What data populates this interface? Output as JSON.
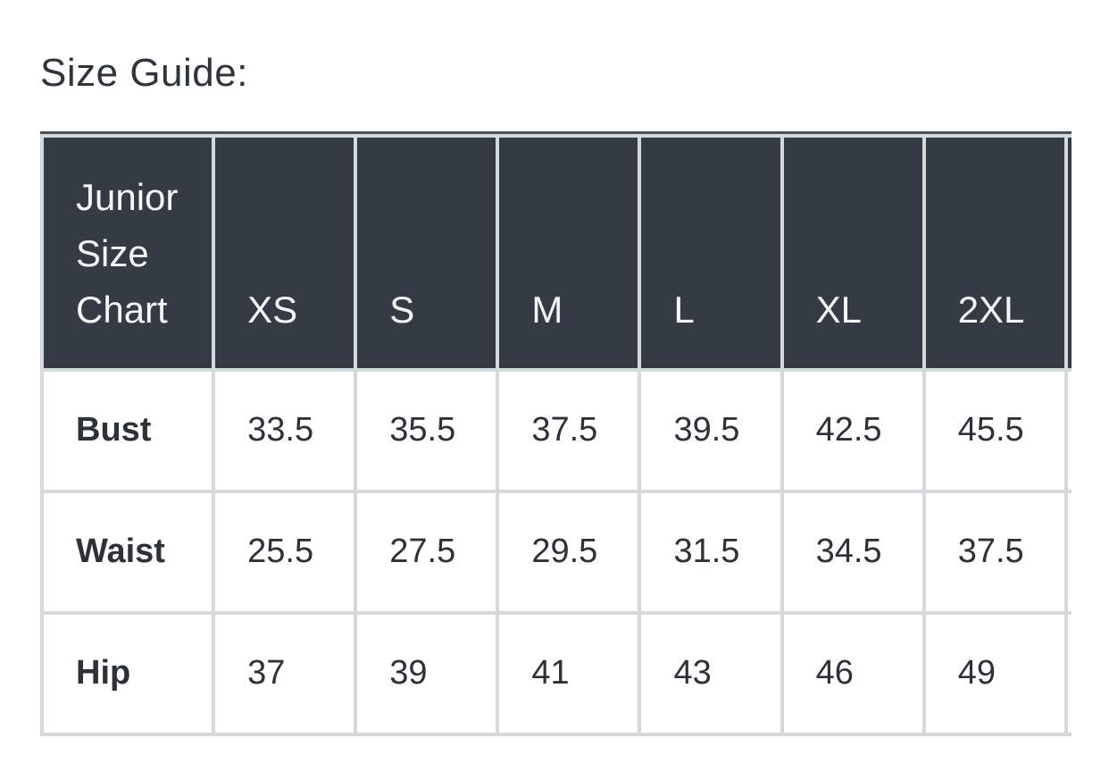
{
  "page": {
    "heading": "Size Guide:"
  },
  "colors": {
    "header_bg": "#353b44",
    "header_text": "#f5f6f8",
    "body_bg": "#ffffff",
    "body_text": "#2d3238",
    "grid_line": "#d6d9dc",
    "top_rule": "#4a5057"
  },
  "table": {
    "corner_label": "Junior Size Chart",
    "columns": [
      "XS",
      "S",
      "M",
      "L",
      "XL",
      "2XL"
    ],
    "rows": [
      {
        "label": "Bust",
        "values": [
          "33.5",
          "35.5",
          "37.5",
          "39.5",
          "42.5",
          "45.5"
        ]
      },
      {
        "label": "Waist",
        "values": [
          "25.5",
          "27.5",
          "29.5",
          "31.5",
          "34.5",
          "37.5"
        ]
      },
      {
        "label": "Hip",
        "values": [
          "37",
          "39",
          "41",
          "43",
          "46",
          "49"
        ]
      }
    ]
  }
}
